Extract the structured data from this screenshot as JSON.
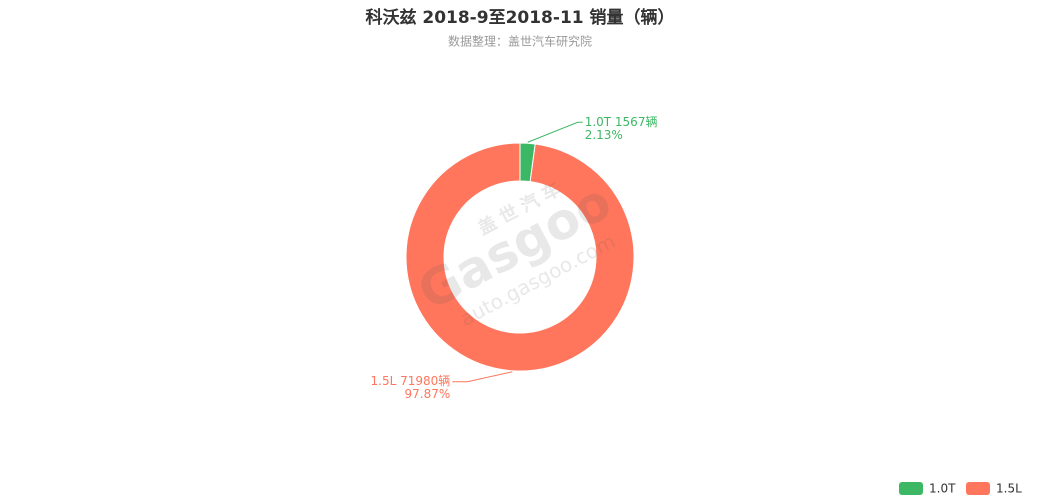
{
  "chart_data": {
    "type": "pie",
    "title": "科沃兹 2018-9至2018-11 销量（辆）",
    "subtitle": "数据整理：盖世汽车研究院",
    "categories": [
      "1.0T",
      "1.5L"
    ],
    "values": [
      1567,
      71980
    ],
    "value_labels": [
      "1.0T 1567辆",
      "1.5L 71980辆"
    ],
    "percents": [
      2.13,
      97.87
    ],
    "percent_labels": [
      "2.13%",
      "97.87%"
    ],
    "colors": [
      "#3cb864",
      "#ff765c"
    ],
    "donut": true,
    "legend": "bottom-right",
    "watermark": {
      "brand": "盖世汽车",
      "logo": "Gasgoo",
      "url": "auto.gasgoo.com"
    }
  }
}
